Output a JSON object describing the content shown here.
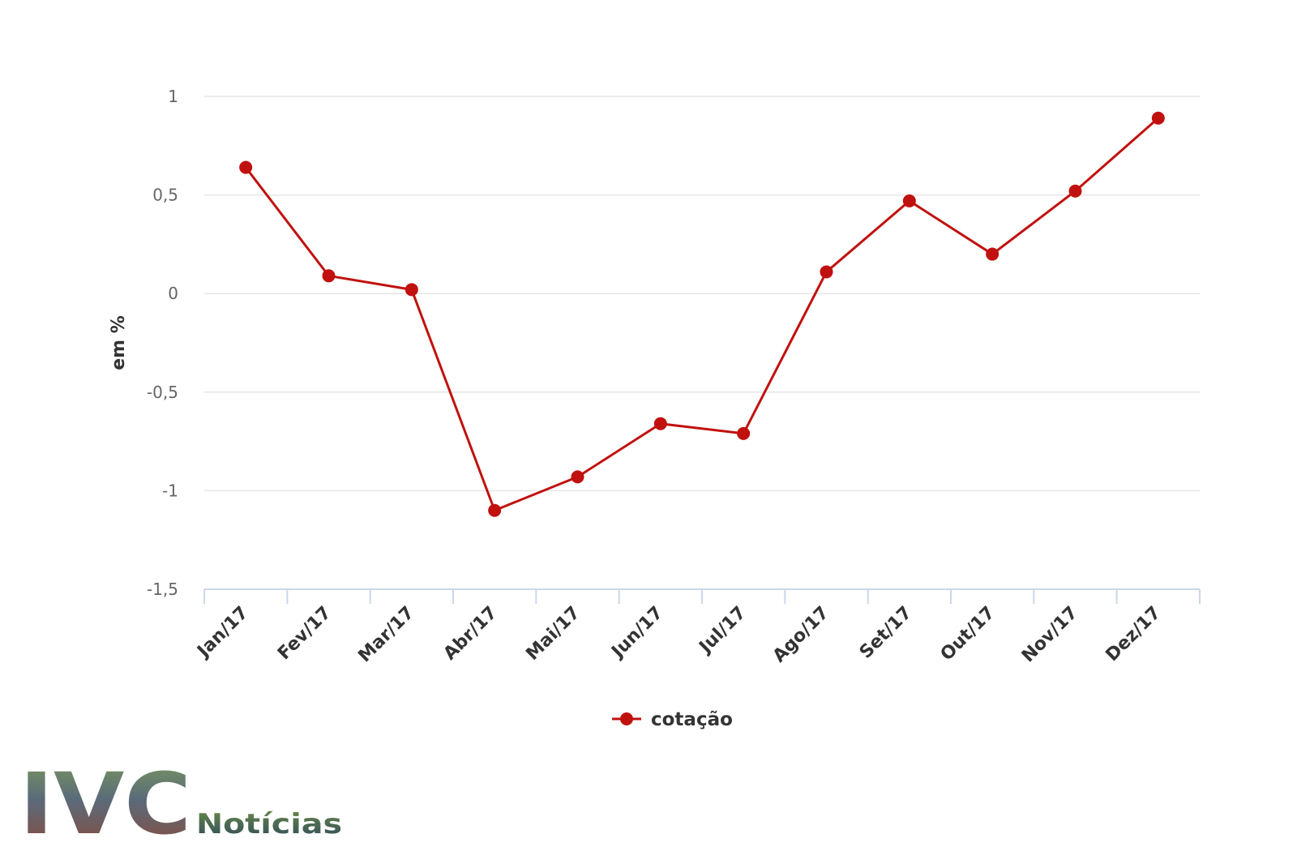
{
  "chart_data": {
    "type": "line",
    "title": "",
    "xlabel": "",
    "ylabel": "em %",
    "ylim": [
      -1.5,
      1
    ],
    "yticks": [
      "1",
      "0,5",
      "0",
      "-0,5",
      "-1",
      "-1,5"
    ],
    "ytick_values": [
      1,
      0.5,
      0,
      -0.5,
      -1,
      -1.5
    ],
    "categories": [
      "Jan/17",
      "Fev/17",
      "Mar/17",
      "Abr/17",
      "Mai/17",
      "Jun/17",
      "Jul/17",
      "Ago/17",
      "Set/17",
      "Out/17",
      "Nov/17",
      "Dez/17"
    ],
    "series": [
      {
        "name": "cotação",
        "color": "#c0110f",
        "values": [
          0.64,
          0.09,
          0.02,
          -1.1,
          -0.93,
          -0.66,
          -0.71,
          0.11,
          0.47,
          0.2,
          0.52,
          0.89
        ]
      }
    ],
    "grid": true,
    "legend": "bottom-center"
  },
  "logo": {
    "name": "IVC",
    "subtitle": "Notícias",
    "colors": {
      "dark": "#3a4a5a",
      "green": "#4a6b3a"
    }
  }
}
